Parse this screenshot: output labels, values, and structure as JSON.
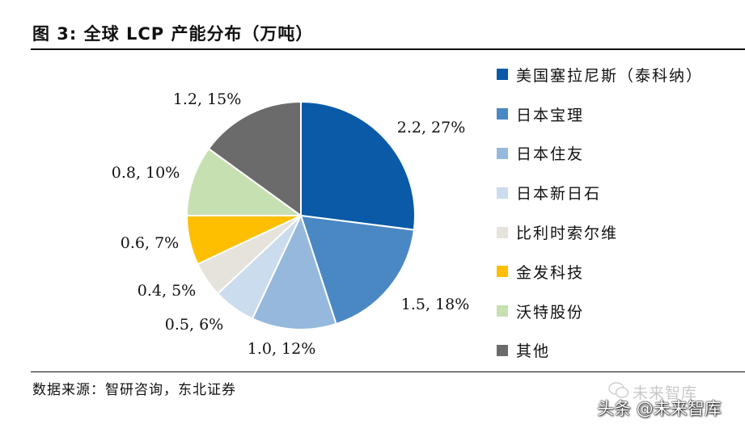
{
  "figure": {
    "title": "图  3:  全球 LCP 产能分布（万吨）",
    "source": "数据来源：智研咨询，东北证券"
  },
  "watermark": {
    "top_text": "未来智库",
    "bottom_text": "头条 @未来智库"
  },
  "chart_data": {
    "type": "pie",
    "title": "全球 LCP 产能分布（万吨）",
    "unit": "万吨",
    "start": "12 o'clock",
    "direction": "clockwise",
    "legend_position": "right",
    "slices": [
      {
        "name": "美国塞拉尼斯（泰科纳）",
        "value": 2.2,
        "percent": 27,
        "label": "2.2, 27%",
        "color": "#0a5aa8"
      },
      {
        "name": "日本宝理",
        "value": 1.5,
        "percent": 18,
        "label": "1.5, 18%",
        "color": "#4a88c4"
      },
      {
        "name": "日本住友",
        "value": 1.0,
        "percent": 12,
        "label": "1.0, 12%",
        "color": "#95b8dc"
      },
      {
        "name": "日本新日石",
        "value": 0.5,
        "percent": 6,
        "label": "0.5, 6%",
        "color": "#cbdcee"
      },
      {
        "name": "比利时索尔维",
        "value": 0.4,
        "percent": 5,
        "label": "0.4, 5%",
        "color": "#e6e2dc"
      },
      {
        "name": "金发科技",
        "value": 0.6,
        "percent": 7,
        "label": "0.6, 7%",
        "color": "#fdbf00"
      },
      {
        "name": "沃特股份",
        "value": 0.8,
        "percent": 10,
        "label": "0.8, 10%",
        "color": "#c6e0b2"
      },
      {
        "name": "其他",
        "value": 1.2,
        "percent": 15,
        "label": "1.2, 15%",
        "color": "#6b6b6b"
      }
    ]
  }
}
